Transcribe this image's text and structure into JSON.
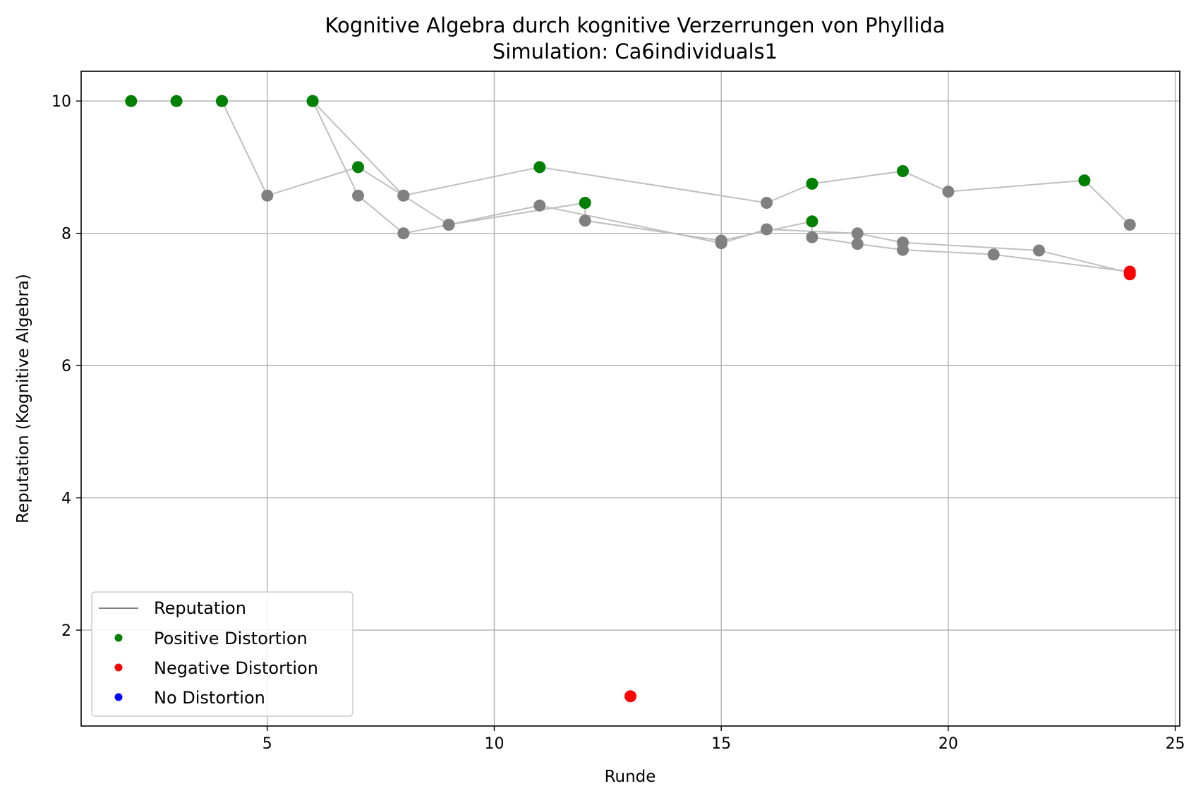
{
  "chart_data": {
    "type": "line",
    "title": "Kognitive Algebra durch kognitive Verzerrungen von Phyllida",
    "subtitle": "Simulation: Ca6individuals1",
    "xlabel": "Runde",
    "ylabel": "Reputation (Kognitive Algebra)",
    "xlim": [
      0.9,
      25.1
    ],
    "ylim": [
      0.55,
      10.45
    ],
    "xticks": [
      5,
      10,
      15,
      20,
      25
    ],
    "yticks": [
      2,
      4,
      6,
      8,
      10
    ],
    "grid": true,
    "legend_position": "lower-left",
    "legend": [
      {
        "label": "Reputation",
        "kind": "line",
        "color": "#808080"
      },
      {
        "label": "Positive Distortion",
        "kind": "marker",
        "color": "#008000"
      },
      {
        "label": "Negative Distortion",
        "kind": "marker",
        "color": "#ff0000"
      },
      {
        "label": "No Distortion",
        "kind": "marker",
        "color": "#0000ff"
      }
    ],
    "series": [
      {
        "line_color": "#bfbfbf",
        "points": [
          {
            "x": 2,
            "y": 10.0,
            "c": "positive"
          },
          {
            "x": 3,
            "y": 10.0,
            "c": "positive"
          },
          {
            "x": 4,
            "y": 10.0,
            "c": "positive"
          },
          {
            "x": 5,
            "y": 8.57,
            "c": "none"
          },
          {
            "x": 7,
            "y": 9.0,
            "c": "positive"
          },
          {
            "x": 8,
            "y": 8.57,
            "c": "none"
          },
          {
            "x": 11,
            "y": 9.0,
            "c": "positive"
          },
          {
            "x": 16,
            "y": 8.46,
            "c": "none"
          },
          {
            "x": 17,
            "y": 8.75,
            "c": "positive"
          },
          {
            "x": 19,
            "y": 8.94,
            "c": "positive"
          },
          {
            "x": 20,
            "y": 8.63,
            "c": "none"
          },
          {
            "x": 23,
            "y": 8.8,
            "c": "positive"
          },
          {
            "x": 24,
            "y": 8.13,
            "c": "none"
          }
        ]
      },
      {
        "line_color": "#bfbfbf",
        "points": [
          {
            "x": 6,
            "y": 10.0,
            "c": "positive"
          },
          {
            "x": 7,
            "y": 8.57,
            "c": "none"
          },
          {
            "x": 8,
            "y": 8.0,
            "c": "none"
          },
          {
            "x": 9,
            "y": 8.13,
            "c": "none"
          },
          {
            "x": 11,
            "y": 8.42,
            "c": "none"
          },
          {
            "x": 15,
            "y": 7.85,
            "c": "none"
          },
          {
            "x": 16,
            "y": 8.06,
            "c": "none"
          },
          {
            "x": 18,
            "y": 8.0,
            "c": "none"
          },
          {
            "x": 19,
            "y": 7.86,
            "c": "none"
          },
          {
            "x": 22,
            "y": 7.74,
            "c": "none"
          },
          {
            "x": 24,
            "y": 7.4,
            "c": "negative"
          }
        ]
      },
      {
        "line_color": "#bfbfbf",
        "points": [
          {
            "x": 4,
            "y": 10.0,
            "c": "positive"
          },
          {
            "x": 6,
            "y": 10.0,
            "c": "positive"
          },
          {
            "x": 8,
            "y": 8.57,
            "c": "none"
          },
          {
            "x": 9,
            "y": 8.13,
            "c": "none"
          },
          {
            "x": 12,
            "y": 8.46,
            "c": "positive"
          },
          {
            "x": 12,
            "y": 8.19,
            "c": "none"
          },
          {
            "x": 15,
            "y": 7.89,
            "c": "none"
          },
          {
            "x": 17,
            "y": 8.18,
            "c": "positive"
          },
          {
            "x": 17,
            "y": 7.94,
            "c": "none"
          },
          {
            "x": 18,
            "y": 7.84,
            "c": "none"
          },
          {
            "x": 19,
            "y": 7.75,
            "c": "none"
          },
          {
            "x": 21,
            "y": 7.68,
            "c": "none"
          },
          {
            "x": 24,
            "y": 7.42,
            "c": "negative"
          }
        ]
      }
    ],
    "isolated_points": [
      {
        "x": 13,
        "y": 1.0,
        "c": "negative"
      },
      {
        "x": 24,
        "y": 7.38,
        "c": "negative"
      }
    ],
    "category_colors": {
      "positive": "#008000",
      "negative": "#ff0000",
      "none": "#808080"
    }
  }
}
